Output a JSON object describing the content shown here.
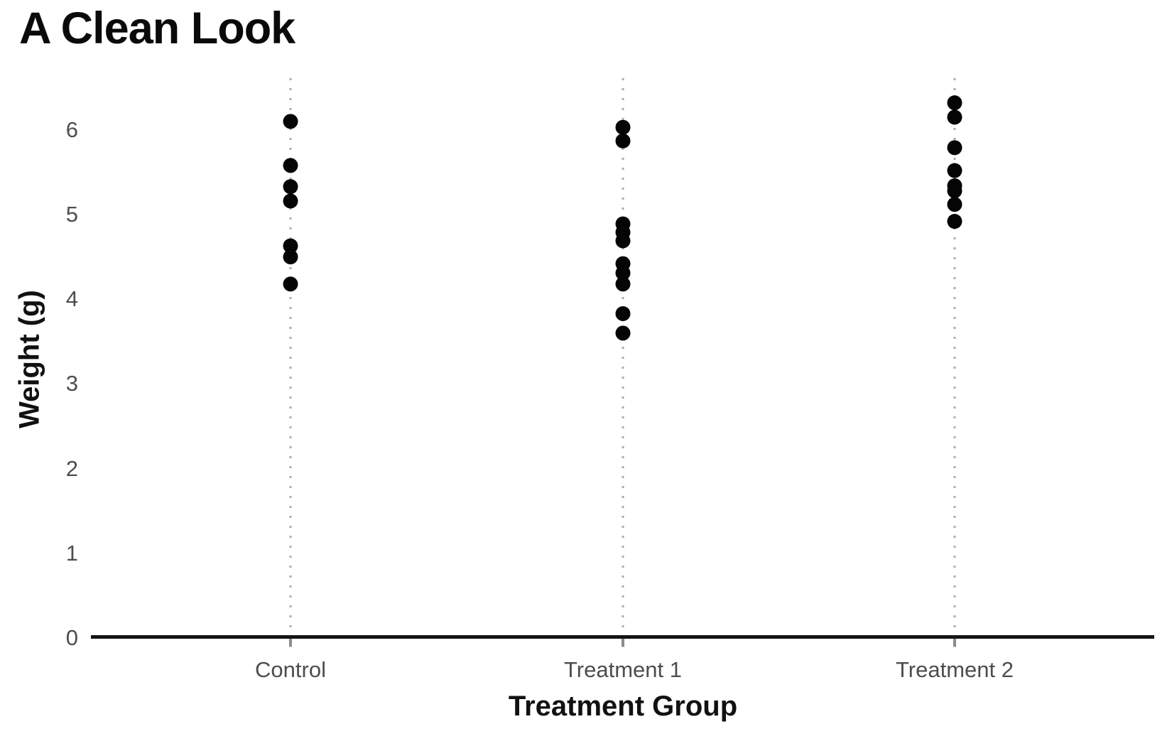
{
  "chart_data": {
    "type": "scatter",
    "subtype": "strip-plot",
    "title": "A Clean Look",
    "xlabel": "Treatment Group",
    "ylabel": "Weight (g)",
    "categories": [
      "Control",
      "Treatment 1",
      "Treatment 2"
    ],
    "yticks": [
      0,
      1,
      2,
      3,
      4,
      5,
      6
    ],
    "ylim": [
      0,
      6.6
    ],
    "grid": "vertical dotted gridlines only",
    "legend": "none",
    "series": [
      {
        "name": "Control",
        "values": [
          6.1,
          5.58,
          5.33,
          5.16,
          4.63,
          4.5,
          4.18
        ]
      },
      {
        "name": "Treatment 1",
        "values": [
          6.03,
          5.87,
          4.89,
          4.79,
          4.69,
          4.42,
          4.31,
          4.18,
          3.83,
          3.6
        ]
      },
      {
        "name": "Treatment 2",
        "values": [
          6.32,
          6.15,
          5.79,
          5.52,
          5.34,
          5.28,
          5.12,
          4.92
        ]
      }
    ],
    "point_color": "#050505",
    "point_radius_px": 10.5
  },
  "colors": {
    "background": "#ffffff",
    "axis_line": "#141414",
    "tick_label": "#4d4d4d",
    "axis_title": "#111111",
    "gridline": "#ababab",
    "title": "#0a0a0a"
  }
}
